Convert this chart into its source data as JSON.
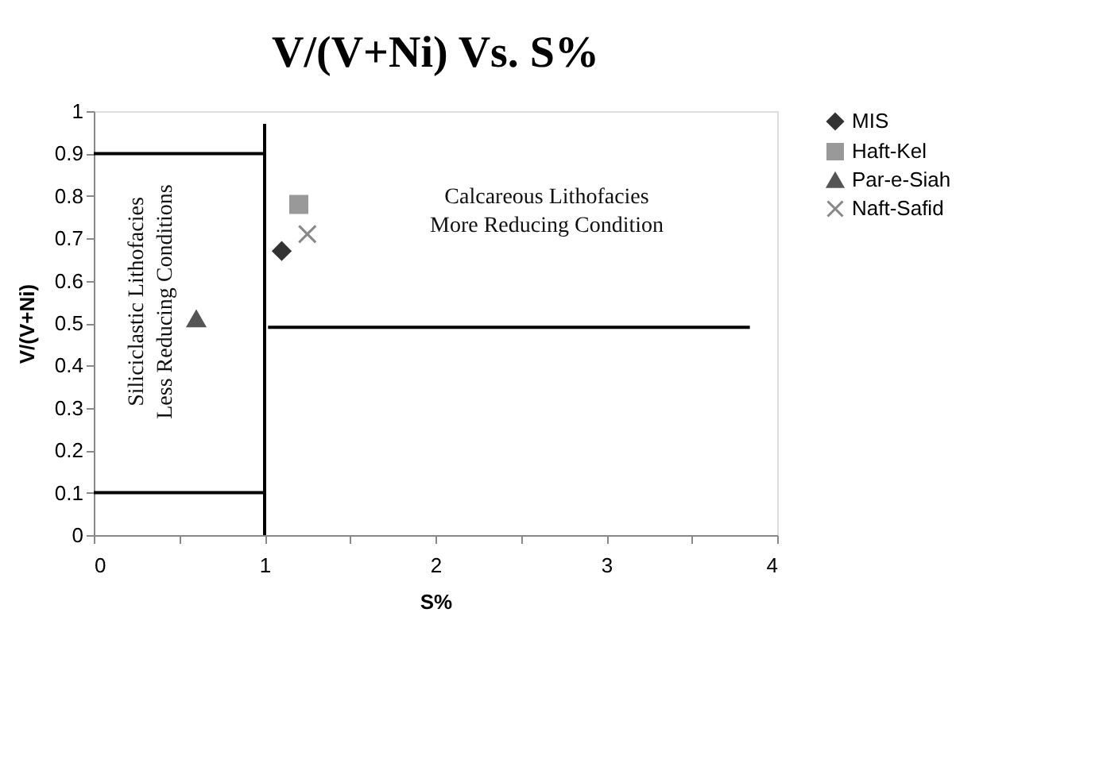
{
  "chart_data": {
    "type": "scatter",
    "title": "V/(V+Ni) Vs. S%",
    "xlabel": "S%",
    "ylabel": "V/(V+Ni)",
    "xlim": [
      0,
      4
    ],
    "xticks": [
      0,
      {
        "value": 0.5,
        "label": null
      },
      1,
      {
        "value": 1.5,
        "label": null
      },
      2,
      {
        "value": 2.5,
        "label": null
      },
      3,
      {
        "value": 3.5,
        "label": null
      },
      4
    ],
    "ylim": [
      0,
      1
    ],
    "yticks": [
      0,
      0.1,
      0.2,
      0.3,
      0.4,
      0.5,
      0.6,
      0.7,
      0.8,
      0.9,
      1
    ],
    "grid": false,
    "legend": "top right",
    "series": [
      {
        "name": "MIS",
        "marker": "diamond",
        "color": "#333333",
        "x": [
          1.1
        ],
        "values": [
          0.67
        ]
      },
      {
        "name": "Haft-Kel",
        "marker": "square",
        "color": "#999999",
        "x": [
          1.2
        ],
        "values": [
          0.78
        ]
      },
      {
        "name": "Par-e-Siah",
        "marker": "triangle",
        "color": "#555555",
        "x": [
          0.6
        ],
        "values": [
          0.51
        ]
      },
      {
        "name": "Naft-Safid",
        "marker": "cross",
        "color": "#888888",
        "x": [
          1.25
        ],
        "values": [
          0.71
        ]
      },
      {
        "type": "line",
        "color": "#000000",
        "x": [
          0,
          1
        ],
        "values": [
          0.9,
          0.9
        ]
      },
      {
        "type": "line",
        "color": "#000000",
        "x": [
          0,
          1
        ],
        "values": [
          0.1,
          0.1
        ]
      },
      {
        "type": "line",
        "color": "#000000",
        "x": [
          1,
          1
        ],
        "values": [
          0,
          0.97
        ]
      },
      {
        "type": "line",
        "color": "#000000",
        "x": [
          1.02,
          3.84
        ],
        "values": [
          0.49,
          0.49
        ]
      }
    ],
    "annotations": [
      "Siliciclastic Lithofacies\nLess Reducing Conditions",
      "Calcareous Lithofacies\nMore Reducing Condition"
    ]
  }
}
